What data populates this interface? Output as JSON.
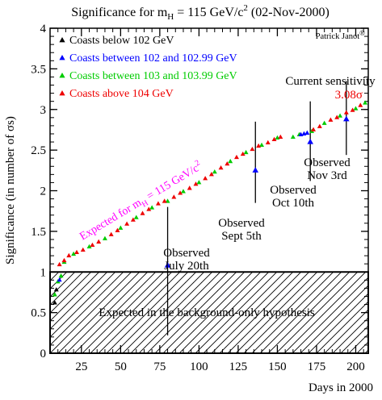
{
  "chart_data": {
    "type": "scatter",
    "title_main": "Significance for m",
    "title_sub": "H",
    "title_rest": " = 115 GeV/c",
    "title_sup": "2",
    "title_date": " (02-Nov-2000)",
    "xlabel": "Days in 2000",
    "ylabel": "Significance (in number of σs)",
    "xlim": [
      5,
      208
    ],
    "ylim": [
      0,
      4
    ],
    "x_ticks": [
      25,
      50,
      75,
      100,
      125,
      150,
      175,
      200
    ],
    "y_ticks": [
      0,
      0.5,
      1,
      1.5,
      2,
      2.5,
      3,
      3.5,
      4
    ],
    "author": "Patrick Janot",
    "author_mark": "®",
    "legend_position": "top-left",
    "series": [
      {
        "name": "Coasts below 102 GeV",
        "color": "#000000",
        "points": [
          [
            8,
            0.62
          ],
          [
            9,
            0.78
          ]
        ]
      },
      {
        "name": "Coasts between 102 and 102.99 GeV",
        "color": "#0000ff",
        "points": [
          [
            11,
            0.9
          ],
          [
            165,
            2.69
          ],
          [
            167,
            2.7
          ],
          [
            169,
            2.71
          ]
        ]
      },
      {
        "name": "Coasts between 103 and 103.99 GeV",
        "color": "#00cc00",
        "points": [
          [
            8,
            0.72
          ],
          [
            10,
            0.88
          ],
          [
            12,
            0.95
          ],
          [
            14,
            1.12
          ],
          [
            20,
            1.22
          ],
          [
            30,
            1.31
          ],
          [
            40,
            1.41
          ],
          [
            50,
            1.54
          ],
          [
            60,
            1.67
          ],
          [
            70,
            1.79
          ],
          [
            80,
            1.87
          ],
          [
            90,
            1.99
          ],
          [
            100,
            2.1
          ],
          [
            110,
            2.23
          ],
          [
            120,
            2.36
          ],
          [
            130,
            2.47
          ],
          [
            140,
            2.56
          ],
          [
            150,
            2.65
          ],
          [
            160,
            2.66
          ],
          [
            164,
            2.69
          ],
          [
            172,
            2.73
          ],
          [
            180,
            2.83
          ],
          [
            190,
            2.92
          ],
          [
            200,
            3.01
          ],
          [
            206,
            3.08
          ]
        ]
      },
      {
        "name": "Coasts above 104 GeV",
        "color": "#ee0000",
        "points": [
          [
            11,
            1.09
          ],
          [
            14,
            1.14
          ],
          [
            17,
            1.2
          ],
          [
            22,
            1.24
          ],
          [
            26,
            1.27
          ],
          [
            32,
            1.33
          ],
          [
            36,
            1.37
          ],
          [
            44,
            1.46
          ],
          [
            48,
            1.51
          ],
          [
            54,
            1.59
          ],
          [
            58,
            1.64
          ],
          [
            64,
            1.72
          ],
          [
            68,
            1.77
          ],
          [
            74,
            1.84
          ],
          [
            78,
            1.87
          ],
          [
            84,
            1.92
          ],
          [
            88,
            1.97
          ],
          [
            94,
            2.03
          ],
          [
            98,
            2.08
          ],
          [
            104,
            2.15
          ],
          [
            108,
            2.2
          ],
          [
            114,
            2.28
          ],
          [
            118,
            2.33
          ],
          [
            124,
            2.41
          ],
          [
            128,
            2.45
          ],
          [
            134,
            2.51
          ],
          [
            138,
            2.55
          ],
          [
            144,
            2.59
          ],
          [
            148,
            2.63
          ],
          [
            152,
            2.66
          ],
          [
            173,
            2.75
          ],
          [
            177,
            2.79
          ],
          [
            184,
            2.87
          ],
          [
            188,
            2.9
          ],
          [
            194,
            2.96
          ],
          [
            198,
            2.99
          ],
          [
            203,
            3.05
          ]
        ]
      }
    ],
    "annotations": [
      {
        "id": "july",
        "lines": [
          "Observed",
          "July 20th"
        ],
        "x": 80,
        "y": 1.08
      },
      {
        "id": "sept",
        "lines": [
          "Observed",
          "Sept 5th"
        ],
        "x": 136,
        "y": 2.25
      },
      {
        "id": "oct",
        "lines": [
          "Observed",
          "Oct 10th"
        ],
        "x": 171,
        "y": 2.6
      },
      {
        "id": "nov",
        "lines": [
          "Observed",
          "Nov 3rd"
        ],
        "x": 194,
        "y": 2.88
      }
    ],
    "current_sensitivity_label": "Current sensitivity",
    "current_sensitivity_value": "3.08σ",
    "expected_label_main": "Expected for m",
    "expected_label_sub": "H",
    "expected_label_rest": " = 115 GeV/c",
    "expected_label_sup": "2",
    "background_label": "Expected in the background-only hypothesis",
    "background_region_ylim": [
      0,
      1
    ],
    "colors": {
      "marker": "#0000ff",
      "expected": "#ff00ff",
      "current": "#ee0000",
      "axis": "#000000"
    }
  }
}
